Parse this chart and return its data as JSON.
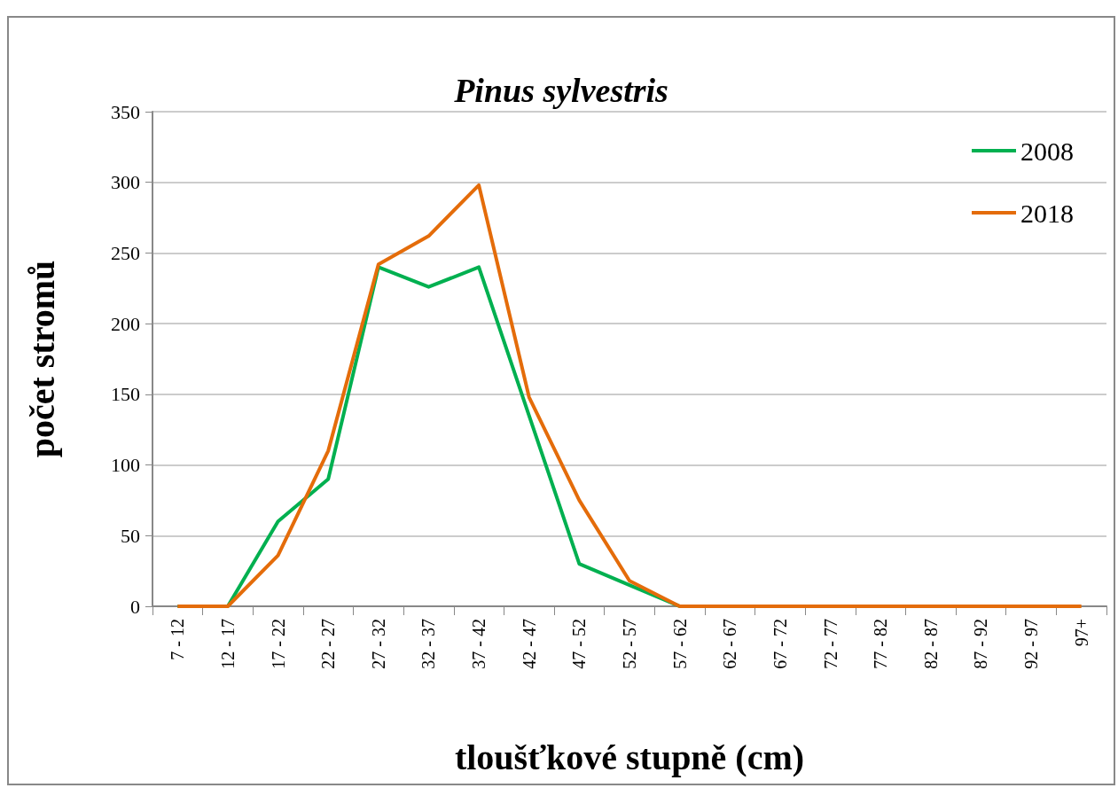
{
  "chart_data": {
    "type": "line",
    "title": "Pinus sylvestris",
    "xlabel": "tloušťkové stupně (cm)",
    "ylabel": "počet stromů",
    "categories": [
      "7 - 12",
      "12 - 17",
      "17 - 22",
      "22 - 27",
      "27 - 32",
      "32 - 37",
      "37 - 42",
      "42 - 47",
      "47 - 52",
      "52 - 57",
      "57 - 62",
      "62 - 67",
      "67 - 72",
      "72 - 77",
      "77 - 82",
      "82 - 87",
      "87 - 92",
      "92 - 97",
      "97+"
    ],
    "series": [
      {
        "name": "2008",
        "color": "#00b050",
        "values": [
          0,
          0,
          60,
          90,
          240,
          226,
          240,
          135,
          30,
          15,
          0,
          null,
          null,
          null,
          null,
          null,
          null,
          null,
          null
        ]
      },
      {
        "name": "2018",
        "color": "#e46c0a",
        "values": [
          0,
          0,
          36,
          110,
          242,
          262,
          298,
          148,
          75,
          18,
          0,
          0,
          0,
          0,
          0,
          0,
          0,
          0,
          0
        ]
      }
    ],
    "ylim": [
      0,
      350
    ],
    "yticks": [
      0,
      50,
      100,
      150,
      200,
      250,
      300,
      350
    ],
    "grid": "y",
    "legend": "top right",
    "marker": "none",
    "line_style": "solid"
  }
}
